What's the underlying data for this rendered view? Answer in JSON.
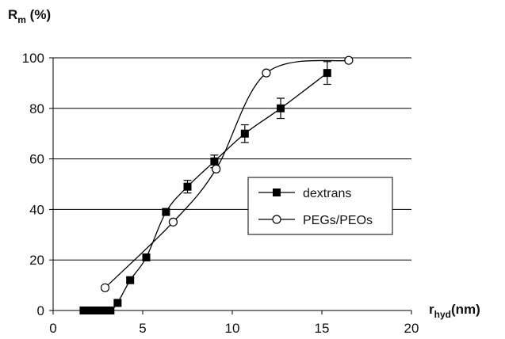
{
  "chart_data": {
    "type": "line",
    "ylabel_main": "R",
    "ylabel_sub": "m",
    "ylabel_unit": " (%)",
    "xlabel_main": "r",
    "xlabel_sub": "hyd",
    "xlabel_unit": "(nm)",
    "xlim": [
      0,
      20
    ],
    "ylim": [
      0,
      100
    ],
    "xticks": [
      "0",
      "5",
      "10",
      "15",
      "20"
    ],
    "yticks": [
      "0",
      "20",
      "40",
      "60",
      "80",
      "100"
    ],
    "grid": "horizontal",
    "legend_position": "right-middle",
    "series": [
      {
        "name": "dextrans",
        "marker": "filled-square",
        "x": [
          1.7,
          2.0,
          2.2,
          2.4,
          2.6,
          2.9,
          3.2,
          3.6,
          4.3,
          5.2,
          6.3,
          7.5,
          9.0,
          10.7,
          12.7,
          15.3
        ],
        "y": [
          0,
          0,
          0,
          0,
          0,
          0,
          0,
          3,
          12,
          21,
          39,
          49,
          59,
          70,
          80,
          94
        ],
        "err": [
          0,
          0,
          0,
          0,
          0,
          0,
          0,
          0,
          1,
          0,
          1,
          2.5,
          2.5,
          3.5,
          4,
          4.5
        ]
      },
      {
        "name": "PEGs/PEOs",
        "marker": "open-circle",
        "x": [
          2.9,
          6.7,
          9.1,
          11.9,
          16.5
        ],
        "y": [
          9,
          35,
          56,
          94,
          99
        ]
      }
    ]
  },
  "legend": {
    "items": [
      "dextrans",
      "PEGs/PEOs"
    ]
  },
  "colors": {
    "line": "#000000",
    "grid": "#000000",
    "background": "#ffffff"
  }
}
